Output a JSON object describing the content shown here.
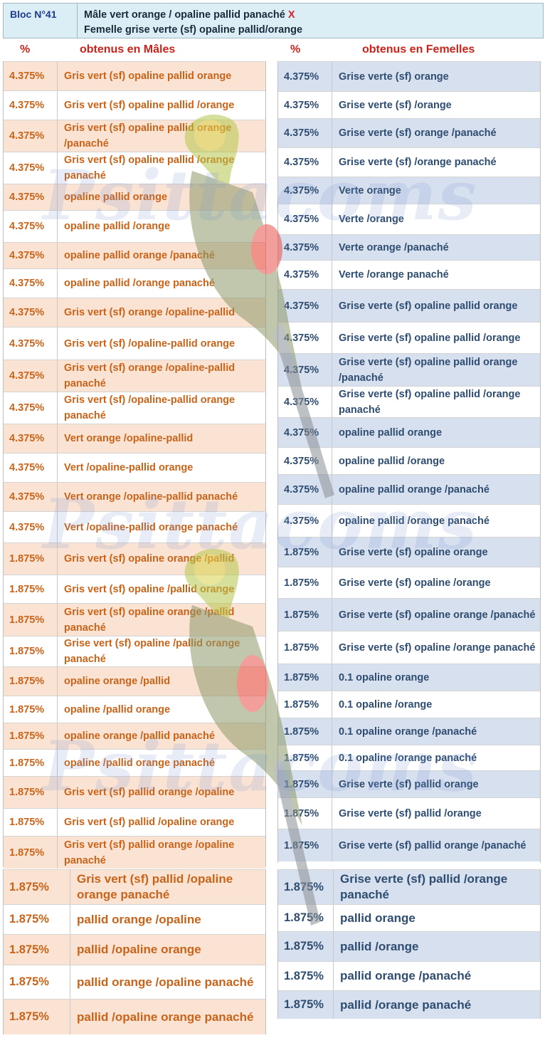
{
  "header": {
    "bloc": "Bloc N°41",
    "male_parent": "Mâle vert orange / opaline pallid panaché",
    "cross_symbol": "X",
    "female_parent": "Femelle  grise verte (sf) opaline pallid/orange"
  },
  "males": {
    "pct_header": "%",
    "title": "obtenus en Mâles",
    "rows": [
      {
        "pct": "4.375%",
        "label": "Gris vert (sf) opaline pallid orange"
      },
      {
        "pct": "4.375%",
        "label": "Gris vert (sf) opaline pallid /orange"
      },
      {
        "pct": "4.375%",
        "label": "Gris vert (sf) opaline pallid orange /panaché"
      },
      {
        "pct": "4.375%",
        "label": "Gris vert (sf) opaline pallid /orange panaché"
      },
      {
        "pct": "4.375%",
        "label": "opaline pallid orange"
      },
      {
        "pct": "4.375%",
        "label": "opaline pallid /orange"
      },
      {
        "pct": "4.375%",
        "label": "opaline pallid orange /panaché"
      },
      {
        "pct": "4.375%",
        "label": "opaline pallid /orange panaché"
      },
      {
        "pct": "4.375%",
        "label": " Gris vert (sf) orange /opaline-pallid"
      },
      {
        "pct": "4.375%",
        "label": "Gris vert (sf) /opaline-pallid orange"
      },
      {
        "pct": "4.375%",
        "label": "Gris vert (sf) orange /opaline-pallid panaché"
      },
      {
        "pct": "4.375%",
        "label": "Gris vert (sf) /opaline-pallid orange panaché"
      },
      {
        "pct": "4.375%",
        "label": "Vert  orange /opaline-pallid"
      },
      {
        "pct": "4.375%",
        "label": "Vert  /opaline-pallid orange"
      },
      {
        "pct": "4.375%",
        "label": "Vert orange /opaline-pallid panaché"
      },
      {
        "pct": "4.375%",
        "label": "Vert  /opaline-pallid orange panaché"
      },
      {
        "pct": "1.875%",
        "label": "Gris vert (sf) opaline orange /pallid"
      },
      {
        "pct": "1.875%",
        "label": "Gris vert (sf) opaline /pallid orange"
      },
      {
        "pct": "1.875%",
        "label": "Gris vert (sf) opaline orange /pallid panaché"
      },
      {
        "pct": "1.875%",
        "label": "Grise vert (sf) opaline /pallid orange panaché"
      },
      {
        "pct": "1.875%",
        "label": "opaline orange /pallid"
      },
      {
        "pct": "1.875%",
        "label": "opaline /pallid orange"
      },
      {
        "pct": "1.875%",
        "label": "opaline orange /pallid panaché"
      },
      {
        "pct": "1.875%",
        "label": "opaline /pallid orange panaché"
      },
      {
        "pct": "1.875%",
        "label": "Gris vert (sf) pallid orange /opaline"
      },
      {
        "pct": "1.875%",
        "label": "Gris vert (sf) pallid /opaline orange"
      },
      {
        "pct": "1.875%",
        "label": "Gris vert (sf) pallid orange /opaline panaché"
      }
    ],
    "rows_large": [
      {
        "pct": "1.875%",
        "label": "Gris vert (sf) pallid /opaline orange panaché"
      },
      {
        "pct": "1.875%",
        "label": "pallid orange /opaline"
      },
      {
        "pct": "1.875%",
        "label": "pallid /opaline orange"
      },
      {
        "pct": "1.875%",
        "label": "pallid orange /opaline panaché"
      },
      {
        "pct": "1.875%",
        "label": "pallid /opaline orange panaché"
      }
    ]
  },
  "females": {
    "pct_header": "%",
    "title": "obtenus en Femelles",
    "rows": [
      {
        "pct": "4.375%",
        "label": "Grise verte (sf) orange"
      },
      {
        "pct": "4.375%",
        "label": "Grise verte (sf) /orange"
      },
      {
        "pct": "4.375%",
        "label": "Grise verte (sf) orange /panaché"
      },
      {
        "pct": "4.375%",
        "label": "Grise verte (sf) /orange panaché"
      },
      {
        "pct": "4.375%",
        "label": "Verte orange"
      },
      {
        "pct": "4.375%",
        "label": "Verte /orange"
      },
      {
        "pct": "4.375%",
        "label": "Verte orange /panaché"
      },
      {
        "pct": "4.375%",
        "label": "Verte  /orange panaché"
      },
      {
        "pct": "4.375%",
        "label": "Grise verte (sf) opaline pallid orange"
      },
      {
        "pct": "4.375%",
        "label": "Grise verte (sf) opaline pallid /orange"
      },
      {
        "pct": "4.375%",
        "label": "Grise verte (sf) opaline pallid orange /panaché"
      },
      {
        "pct": "4.375%",
        "label": "Grise verte (sf) opaline pallid /orange panaché"
      },
      {
        "pct": "4.375%",
        "label": "opaline pallid orange"
      },
      {
        "pct": "4.375%",
        "label": "opaline pallid /orange"
      },
      {
        "pct": "4.375%",
        "label": "opaline pallid orange /panaché"
      },
      {
        "pct": "4.375%",
        "label": "opaline pallid /orange panaché"
      },
      {
        "pct": "1.875%",
        "label": "Grise verte (sf) opaline orange"
      },
      {
        "pct": "1.875%",
        "label": "Grise verte (sf) opaline /orange"
      },
      {
        "pct": "1.875%",
        "label": "Grise verte (sf) opaline orange /panaché"
      },
      {
        "pct": "1.875%",
        "label": "Grise verte (sf) opaline /orange panaché"
      },
      {
        "pct": "1.875%",
        "label": "0.1 opaline orange"
      },
      {
        "pct": "1.875%",
        "label": "0.1 opaline /orange"
      },
      {
        "pct": "1.875%",
        "label": "0.1 opaline orange /panaché"
      },
      {
        "pct": "1.875%",
        "label": "0.1 opaline /orange panaché"
      },
      {
        "pct": "1.875%",
        "label": "Grise verte (sf) pallid orange"
      },
      {
        "pct": "1.875%",
        "label": "Grise verte (sf) pallid /orange"
      },
      {
        "pct": "1.875%",
        "label": "Grise verte (sf) pallid orange /panaché"
      }
    ],
    "rows_large": [
      {
        "pct": "1.875%",
        "label": "Grise verte (sf) pallid /orange panaché"
      },
      {
        "pct": "1.875%",
        "label": "pallid orange"
      },
      {
        "pct": "1.875%",
        "label": "pallid /orange"
      },
      {
        "pct": "1.875%",
        "label": "pallid orange /panaché"
      },
      {
        "pct": "1.875%",
        "label": "pallid /orange panaché"
      }
    ]
  },
  "watermark": "Psittacoms",
  "colors": {
    "male_text": "#c8641a",
    "male_band": "#fbe3d3",
    "female_text": "#2f4d70",
    "female_band": "#d7e0ee",
    "header_bg": "#dbeef5",
    "title_red": "#c8241a"
  }
}
